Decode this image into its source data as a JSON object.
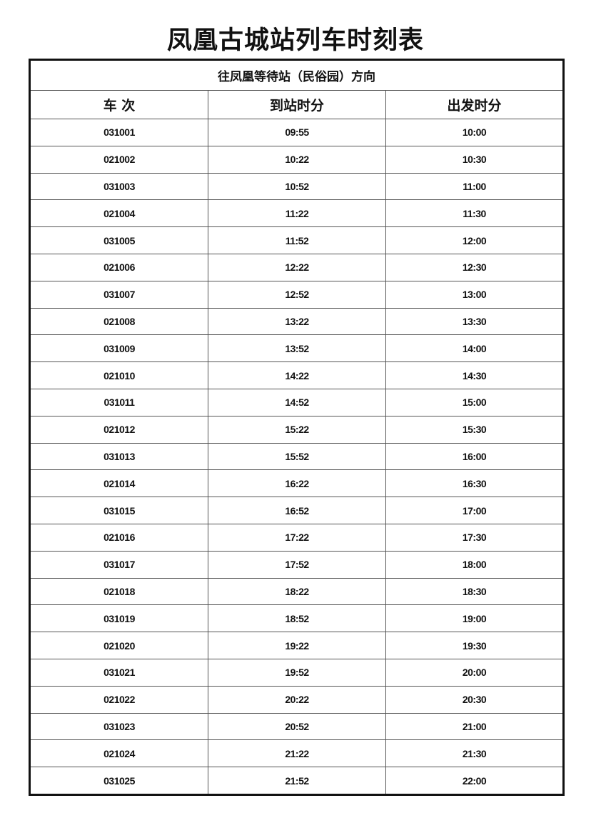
{
  "title": "凤凰古城站列车时刻表",
  "direction": "往凤凰等待站（民俗园）方向",
  "columns": [
    "车 次",
    "到站时分",
    "出发时分"
  ],
  "rows": [
    [
      "031001",
      "09:55",
      "10:00"
    ],
    [
      "021002",
      "10:22",
      "10:30"
    ],
    [
      "031003",
      "10:52",
      "11:00"
    ],
    [
      "021004",
      "11:22",
      "11:30"
    ],
    [
      "031005",
      "11:52",
      "12:00"
    ],
    [
      "021006",
      "12:22",
      "12:30"
    ],
    [
      "031007",
      "12:52",
      "13:00"
    ],
    [
      "021008",
      "13:22",
      "13:30"
    ],
    [
      "031009",
      "13:52",
      "14:00"
    ],
    [
      "021010",
      "14:22",
      "14:30"
    ],
    [
      "031011",
      "14:52",
      "15:00"
    ],
    [
      "021012",
      "15:22",
      "15:30"
    ],
    [
      "031013",
      "15:52",
      "16:00"
    ],
    [
      "021014",
      "16:22",
      "16:30"
    ],
    [
      "031015",
      "16:52",
      "17:00"
    ],
    [
      "021016",
      "17:22",
      "17:30"
    ],
    [
      "031017",
      "17:52",
      "18:00"
    ],
    [
      "021018",
      "18:22",
      "18:30"
    ],
    [
      "031019",
      "18:52",
      "19:00"
    ],
    [
      "021020",
      "19:22",
      "19:30"
    ],
    [
      "031021",
      "19:52",
      "20:00"
    ],
    [
      "021022",
      "20:22",
      "20:30"
    ],
    [
      "031023",
      "20:52",
      "21:00"
    ],
    [
      "021024",
      "21:22",
      "21:30"
    ],
    [
      "031025",
      "21:52",
      "22:00"
    ]
  ]
}
